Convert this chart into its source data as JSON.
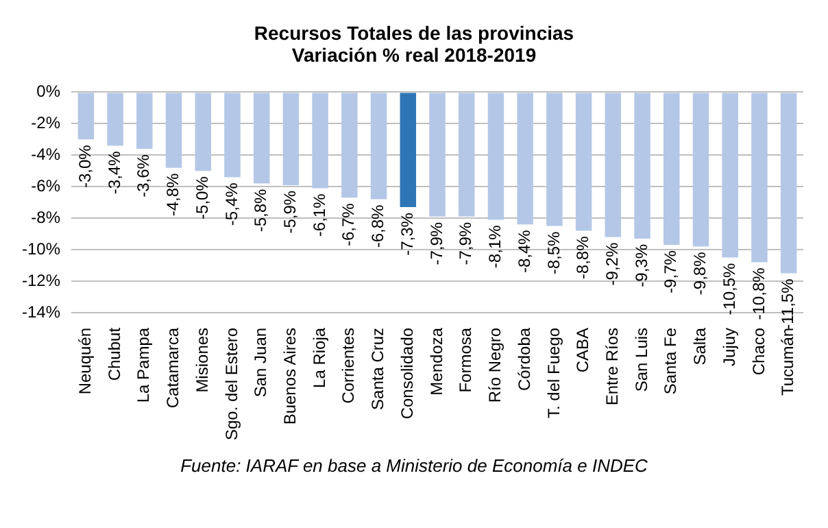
{
  "chart_data": {
    "type": "bar",
    "title": "Recursos Totales de las provincias",
    "subtitle": "Variación % real 2018-2019",
    "categories": [
      "Neuquén",
      "Chubut",
      "La Pampa",
      "Catamarca",
      "Misiones",
      "Sgo. del Estero",
      "San Juan",
      "Buenos Aires",
      "La Rioja",
      "Corrientes",
      "Santa Cruz",
      "Consolidado",
      "Mendoza",
      "Formosa",
      "Río Negro",
      "Córdoba",
      "T. del Fuego",
      "CABA",
      "Entre Ríos",
      "San Luis",
      "Santa Fe",
      "Salta",
      "Jujuy",
      "Chaco",
      "Tucumán"
    ],
    "values": [
      -3.0,
      -3.4,
      -3.6,
      -4.8,
      -5.0,
      -5.4,
      -5.8,
      -5.9,
      -6.1,
      -6.7,
      -6.8,
      -7.3,
      -7.9,
      -7.9,
      -8.1,
      -8.4,
      -8.5,
      -8.8,
      -9.2,
      -9.3,
      -9.7,
      -9.8,
      -10.5,
      -10.8,
      -11.5
    ],
    "value_labels": [
      "-3,0%",
      "-3,4%",
      "-3,6%",
      "-4,8%",
      "-5,0%",
      "-5,4%",
      "-5,8%",
      "-5,9%",
      "-6,1%",
      "-6,7%",
      "-6,8%",
      "-7,3%",
      "-7,9%",
      "-7,9%",
      "-8,1%",
      "-8,4%",
      "-8,5%",
      "-8,8%",
      "-9,2%",
      "-9,3%",
      "-9,7%",
      "-9,8%",
      "-10,5%",
      "-10,8%",
      "-11,5%"
    ],
    "colors": [
      "#b4c7e7",
      "#b4c7e7",
      "#b4c7e7",
      "#b4c7e7",
      "#b4c7e7",
      "#b4c7e7",
      "#b4c7e7",
      "#b4c7e7",
      "#b4c7e7",
      "#b4c7e7",
      "#b4c7e7",
      "#2e75b6",
      "#b4c7e7",
      "#b4c7e7",
      "#b4c7e7",
      "#b4c7e7",
      "#b4c7e7",
      "#b4c7e7",
      "#b4c7e7",
      "#b4c7e7",
      "#b4c7e7",
      "#b4c7e7",
      "#b4c7e7",
      "#b4c7e7",
      "#b4c7e7"
    ],
    "ylim": [
      -14,
      0
    ],
    "yticks": [
      {
        "value": 0,
        "label": "0%"
      },
      {
        "value": -2,
        "label": "-2%"
      },
      {
        "value": -4,
        "label": "-4%"
      },
      {
        "value": -6,
        "label": "-6%"
      },
      {
        "value": -8,
        "label": "-8%"
      },
      {
        "value": -10,
        "label": "-10%"
      },
      {
        "value": -12,
        "label": "-12%"
      },
      {
        "value": -14,
        "label": "-14%"
      }
    ],
    "grid": "y",
    "annotations": [
      "Fuente: IARAF en base a Ministerio de Economía e INDEC"
    ]
  }
}
